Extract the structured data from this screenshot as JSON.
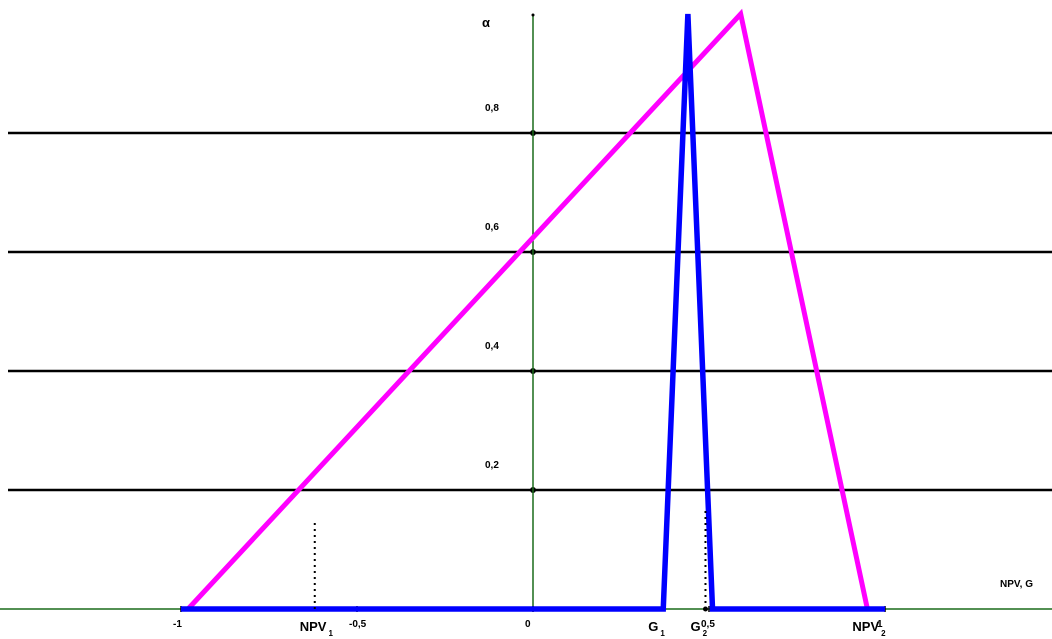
{
  "chart_data": {
    "type": "line",
    "ylabel": "α",
    "xlabel": "NPV, G",
    "xlim": [
      -1,
      1
    ],
    "ylim": [
      0,
      1
    ],
    "x_ticks": [
      {
        "value": -1,
        "label": "-1"
      },
      {
        "value": -0.5,
        "label": "-0,5"
      },
      {
        "value": 0,
        "label": "0"
      },
      {
        "value": 0.5,
        "label": "0,5"
      },
      {
        "value": 1,
        "label": "1"
      }
    ],
    "y_ticks": [
      {
        "value": 0.2,
        "label": "0,2"
      },
      {
        "value": 0.4,
        "label": "0,4"
      },
      {
        "value": 0.6,
        "label": "0,6"
      },
      {
        "value": 0.8,
        "label": "0,8"
      }
    ],
    "grid": true,
    "series": [
      {
        "color": "#ff00ff",
        "points": [
          [
            -0.98,
            0
          ],
          [
            0.59,
            1
          ],
          [
            0.95,
            0
          ]
        ]
      },
      {
        "color": "#0000ff",
        "points": [
          [
            -1,
            0
          ],
          [
            0.37,
            0
          ],
          [
            0.44,
            1
          ],
          [
            0.51,
            0
          ],
          [
            1,
            0
          ]
        ]
      }
    ],
    "markers": [
      {
        "label": "NPV",
        "sub": "1",
        "x": -0.62,
        "guide_height": 0.15
      },
      {
        "label": "G",
        "sub": "1",
        "x": 0.37,
        "guide_height": 0
      },
      {
        "label": "G",
        "sub": "2",
        "x": 0.49,
        "guide_height": 0.17
      },
      {
        "label": "NPV",
        "sub": "2",
        "x": 0.95,
        "guide_height": 0
      }
    ]
  }
}
